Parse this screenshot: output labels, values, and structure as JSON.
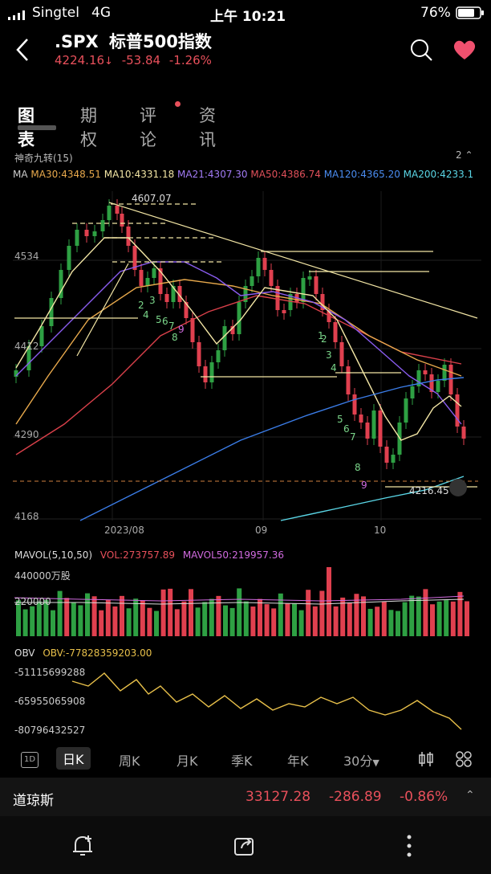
{
  "status": {
    "carrier": "Singtel",
    "network": "4G",
    "time": "上午 10:21",
    "battery": "76%"
  },
  "header": {
    "symbol": ".SPX",
    "name": "标普500指数",
    "price": "4224.16",
    "change": "-53.84",
    "change_pct": "-1.26%"
  },
  "tabs": [
    {
      "label": "图表"
    },
    {
      "label": "期权"
    },
    {
      "label": "评论"
    },
    {
      "label": "资讯"
    }
  ],
  "indicator": {
    "name": "神奇九转(15)",
    "count": "2"
  },
  "ma": {
    "label": "MA",
    "ma30": "MA30:4348.51",
    "ma10": "MA10:4331.18",
    "ma21": "MA21:4307.30",
    "ma50": "MA50:4386.74",
    "ma120": "MA120:4365.20",
    "ma200": "MA200:4233.1"
  },
  "colors": {
    "up": "#2ea043",
    "down": "#e0404f",
    "ma30": "#e8a94c",
    "ma10": "#f3e6a5",
    "ma21": "#8a5cf0",
    "ma50": "#d9404a",
    "ma120": "#3b7de8",
    "ma200": "#5ad6e6",
    "obv": "#e8c04a"
  },
  "chart_data": [
    {
      "type": "candlestick",
      "title": ".SPX",
      "yticks": [
        "4534",
        "4412",
        "4290",
        "4168"
      ],
      "xticks": [
        "2023/08",
        "09",
        "10"
      ],
      "annotations": {
        "high": "4607.07",
        "low": "4216.45"
      },
      "td_counts": [
        "2",
        "3",
        "4",
        "5",
        "6",
        "7",
        "8",
        "9",
        "1",
        "2",
        "3",
        "4",
        "5",
        "6",
        "7",
        "8",
        "9"
      ]
    },
    {
      "type": "bar",
      "title": "MAVOL(5,10,50)",
      "vol": "VOL:273757.89",
      "mavol50": "MAVOL50:219957.36",
      "yticks": [
        "440000万股",
        "220000"
      ]
    },
    {
      "type": "line",
      "title": "OBV",
      "value": "OBV:-77828359203.00",
      "yticks": [
        "-51115699288",
        "-65955065908",
        "-80796432527"
      ]
    }
  ],
  "periods": [
    "日K",
    "周K",
    "月K",
    "季K",
    "年K",
    "30分"
  ],
  "dow": {
    "name": "道琼斯",
    "price": "33127.28",
    "change": "-286.89",
    "change_pct": "-0.86%"
  }
}
